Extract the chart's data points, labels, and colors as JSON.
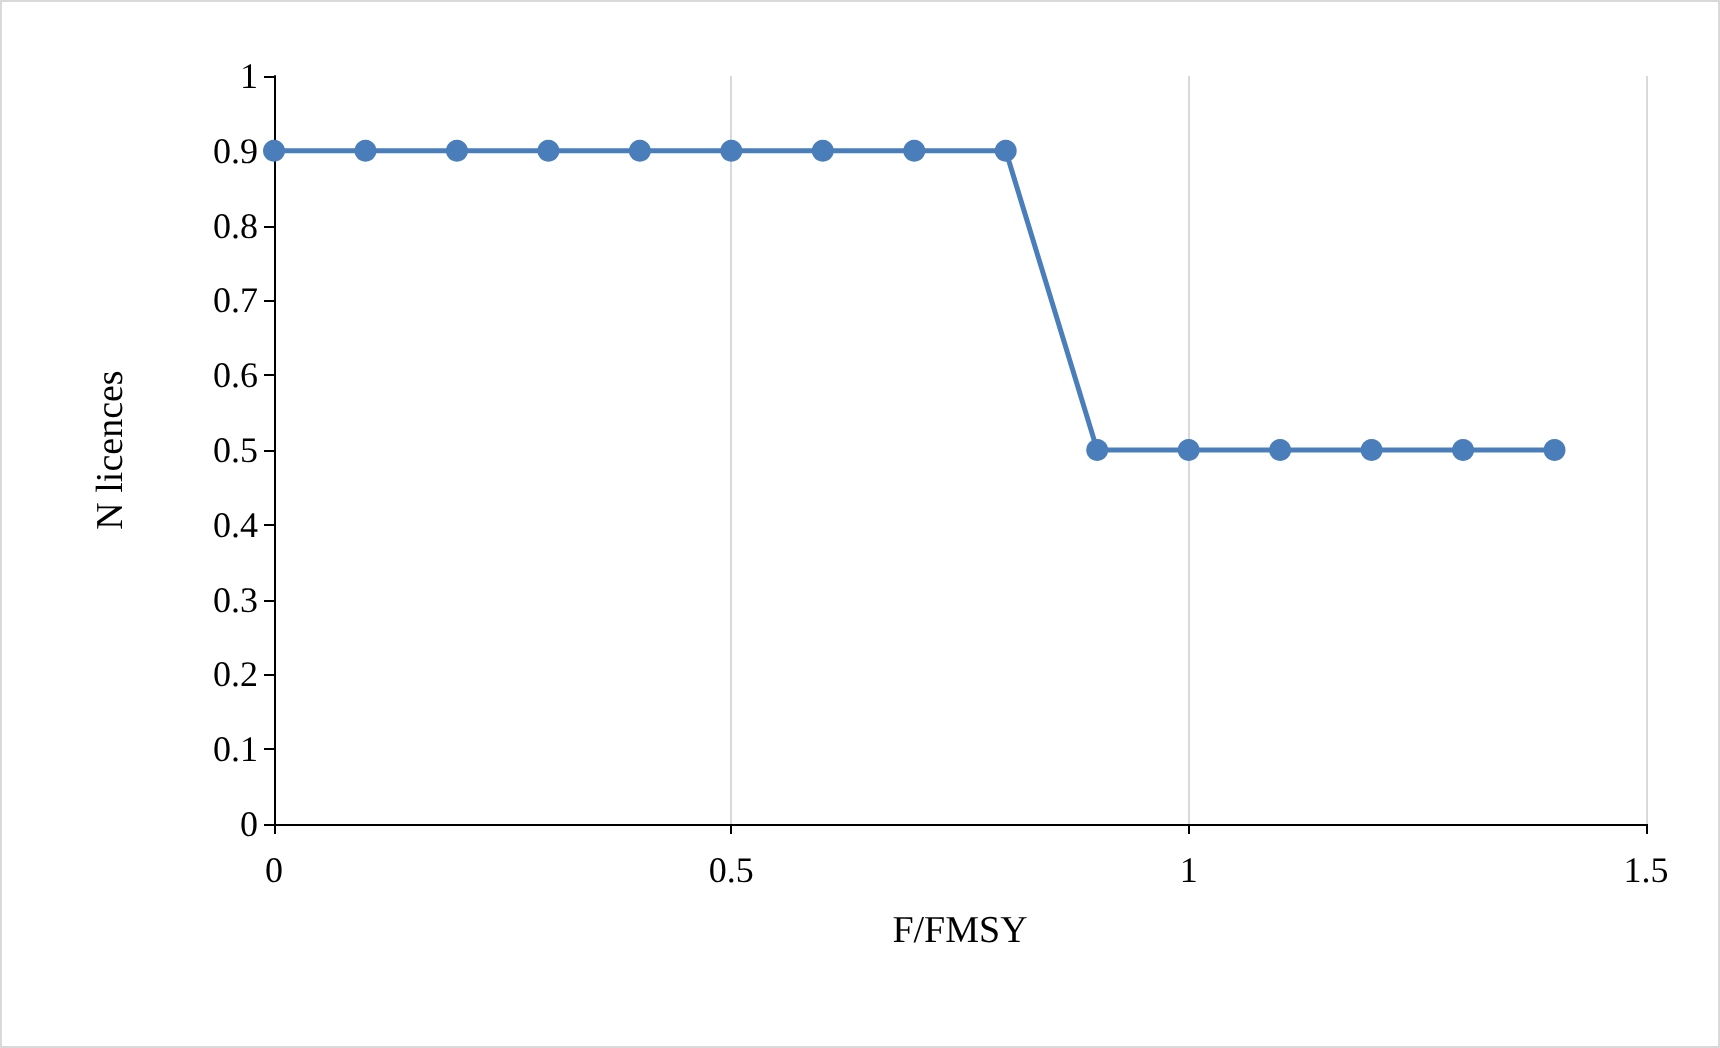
{
  "chart_data": {
    "type": "line",
    "xlabel": "F/FMSY",
    "ylabel": "N licences",
    "x": [
      0,
      0.1,
      0.2,
      0.3,
      0.4,
      0.5,
      0.6,
      0.7,
      0.8,
      0.9,
      1,
      1.1,
      1.2,
      1.3,
      1.4
    ],
    "series": [
      {
        "color": "#4a7ebb",
        "values": [
          0.9,
          0.9,
          0.9,
          0.9,
          0.9,
          0.9,
          0.9,
          0.9,
          0.9,
          0.5,
          0.5,
          0.5,
          0.5,
          0.5,
          0.5
        ]
      }
    ],
    "xlim": [
      0,
      1.5
    ],
    "xticks": [
      0,
      0.5,
      1,
      1.5
    ],
    "ylim": [
      0,
      1
    ],
    "yticks": [
      0,
      0.1,
      0.2,
      0.3,
      0.4,
      0.5,
      0.6,
      0.7,
      0.8,
      0.9,
      1
    ],
    "grid": "x",
    "marker": "circle",
    "line_style": "solid"
  }
}
